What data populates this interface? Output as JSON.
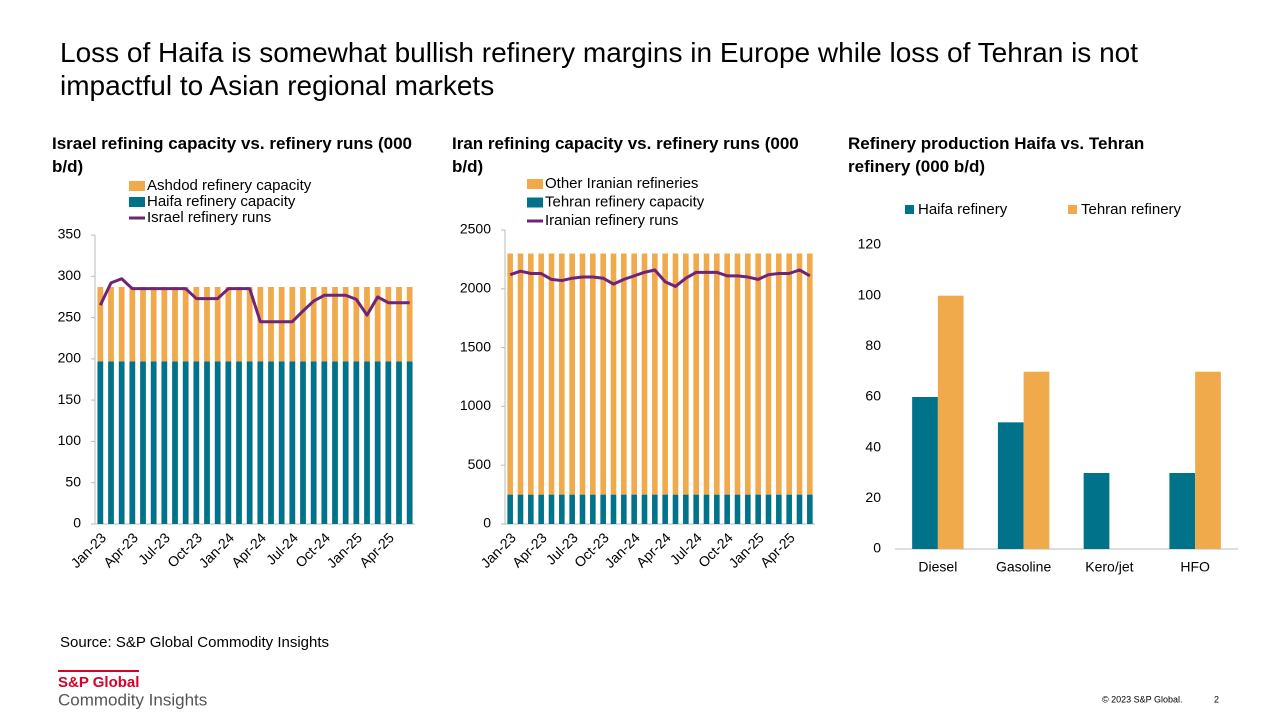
{
  "title": "Loss of Haifa is somewhat bullish refinery margins in Europe while loss of Tehran is not impactful to Asian regional markets",
  "chart_data": [
    {
      "type": "combo",
      "title": "Israel refining capacity vs. refinery runs (000 b/d)",
      "categories": [
        "Jan-23",
        null,
        null,
        "Apr-23",
        null,
        null,
        "Jul-23",
        null,
        null,
        "Oct-23",
        null,
        null,
        "Jan-24",
        null,
        null,
        "Apr-24",
        null,
        null,
        "Jul-24",
        null,
        null,
        "Oct-24",
        null,
        null,
        "Jan-25",
        null,
        null,
        "Apr-25",
        null,
        null
      ],
      "series": [
        {
          "name": "Ashdod refinery capacity",
          "type": "bar",
          "stacked": true,
          "color": "#f0a94b",
          "values": [
            90,
            90,
            90,
            90,
            90,
            90,
            90,
            90,
            90,
            90,
            90,
            90,
            90,
            90,
            90,
            90,
            90,
            90,
            90,
            90,
            90,
            90,
            90,
            90,
            90,
            90,
            90,
            90,
            90,
            90
          ]
        },
        {
          "name": "Haifa refinery capacity",
          "type": "bar",
          "stacked": true,
          "color": "#00738a",
          "values": [
            197,
            197,
            197,
            197,
            197,
            197,
            197,
            197,
            197,
            197,
            197,
            197,
            197,
            197,
            197,
            197,
            197,
            197,
            197,
            197,
            197,
            197,
            197,
            197,
            197,
            197,
            197,
            197,
            197,
            197
          ]
        },
        {
          "name": "Israel refinery runs",
          "type": "line",
          "color": "#6e2577",
          "values": [
            265,
            292,
            297,
            285,
            285,
            285,
            285,
            285,
            285,
            273,
            273,
            273,
            285,
            285,
            285,
            245,
            245,
            245,
            245,
            258,
            270,
            277,
            277,
            277,
            272,
            253,
            275,
            268,
            268,
            268
          ]
        }
      ],
      "ylim": [
        0,
        350
      ],
      "yticks": [
        0,
        50,
        100,
        150,
        200,
        250,
        300,
        350
      ],
      "legend": "top"
    },
    {
      "type": "combo",
      "title": "Iran refining capacity vs. refinery runs (000 b/d)",
      "categories": [
        "Jan-23",
        null,
        null,
        "Apr-23",
        null,
        null,
        "Jul-23",
        null,
        null,
        "Oct-23",
        null,
        null,
        "Jan-24",
        null,
        null,
        "Apr-24",
        null,
        null,
        "Jul-24",
        null,
        null,
        "Oct-24",
        null,
        null,
        "Jan-25",
        null,
        null,
        "Apr-25",
        null,
        null
      ],
      "series": [
        {
          "name": "Other Iranian refineries",
          "type": "bar",
          "stacked": true,
          "color": "#f0a94b",
          "values": [
            2050,
            2050,
            2050,
            2050,
            2050,
            2050,
            2050,
            2050,
            2050,
            2050,
            2050,
            2050,
            2050,
            2050,
            2050,
            2050,
            2050,
            2050,
            2050,
            2050,
            2050,
            2050,
            2050,
            2050,
            2050,
            2050,
            2050,
            2050,
            2050,
            2050
          ]
        },
        {
          "name": "Tehran refinery capacity",
          "type": "bar",
          "stacked": true,
          "color": "#00738a",
          "values": [
            250,
            250,
            250,
            250,
            250,
            250,
            250,
            250,
            250,
            250,
            250,
            250,
            250,
            250,
            250,
            250,
            250,
            250,
            250,
            250,
            250,
            250,
            250,
            250,
            250,
            250,
            250,
            250,
            250,
            250
          ]
        },
        {
          "name": "Iranian refinery runs",
          "type": "line",
          "color": "#6e2577",
          "values": [
            2120,
            2150,
            2130,
            2130,
            2080,
            2070,
            2090,
            2100,
            2100,
            2090,
            2040,
            2080,
            2110,
            2140,
            2160,
            2060,
            2020,
            2090,
            2140,
            2140,
            2140,
            2110,
            2110,
            2100,
            2080,
            2120,
            2130,
            2130,
            2160,
            2110
          ]
        }
      ],
      "ylim": [
        0,
        2500
      ],
      "yticks": [
        0,
        500,
        1000,
        1500,
        2000,
        2500
      ],
      "legend": "top"
    },
    {
      "type": "bar",
      "title": "Refinery production Haifa vs. Tehran refinery (000 b/d)",
      "categories": [
        "Diesel",
        "Gasoline",
        "Kero/jet",
        "HFO"
      ],
      "series": [
        {
          "name": "Haifa refinery",
          "color": "#00738a",
          "values": [
            60,
            50,
            30,
            30
          ]
        },
        {
          "name": "Tehran refinery",
          "color": "#f0a94b",
          "values": [
            100,
            70,
            null,
            70
          ]
        }
      ],
      "ylim": [
        0,
        120
      ],
      "yticks": [
        0,
        20,
        40,
        60,
        80,
        100,
        120
      ],
      "legend": "top"
    }
  ],
  "source": "Source: S&P Global Commodity Insights",
  "footer": {
    "logo_name": "S&P Global",
    "logo_tagline": "Commodity Insights",
    "copyright": "© 2023 S&P Global.",
    "page": "2"
  }
}
